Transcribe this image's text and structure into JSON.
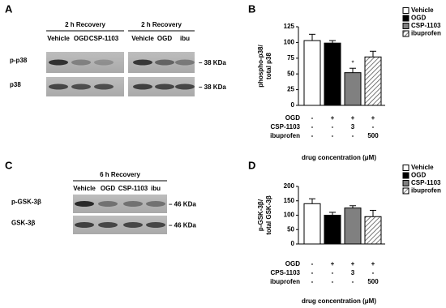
{
  "blots": [
    {
      "panel": "A",
      "groups": [
        {
          "title": "2 h Recovery",
          "lanes": [
            "Vehicle",
            "OGD",
            "CSP-1103"
          ]
        },
        {
          "title": "2 h Recovery",
          "lanes": [
            "Vehicle",
            "OGD",
            "ibu"
          ]
        }
      ],
      "rows": [
        {
          "label": "p-p38",
          "size": "– 38 KDa"
        },
        {
          "label": "p38",
          "size": "– 38 KDa"
        }
      ]
    },
    {
      "panel": "C",
      "groups": [
        {
          "title": "6 h Recovery",
          "lanes": [
            "Vehicle",
            "OGD",
            "CSP-1103",
            "ibu"
          ]
        }
      ],
      "rows": [
        {
          "label": "p-GSK-3β",
          "size": "– 46 KDa"
        },
        {
          "label": "GSK-3β",
          "size": "– 46 KDa"
        }
      ]
    }
  ],
  "chart_data": [
    {
      "type": "bar",
      "panel": "B",
      "ylabel": [
        "phospho-p38/",
        "total p38"
      ],
      "xlabel": "drug concentration (μM)",
      "categories": [
        "Vehicle",
        "OGD",
        "CSP-1103",
        "ibuprofen"
      ],
      "values": [
        103,
        99,
        52,
        77
      ],
      "errors": [
        10,
        4,
        7,
        9
      ],
      "colors": [
        "#ffffff",
        "#000000",
        "#808080",
        "#ffffff"
      ],
      "hatched": [
        false,
        false,
        false,
        true
      ],
      "significance": [
        null,
        null,
        "*",
        null
      ],
      "ylim": [
        0,
        125
      ],
      "yticks": [
        0,
        25,
        50,
        75,
        100,
        125
      ],
      "treatment_rows": [
        {
          "label": "OGD",
          "cells": [
            "-",
            "+",
            "+",
            "+"
          ]
        },
        {
          "label": "CSP-1103",
          "cells": [
            "-",
            "-",
            "3",
            "-"
          ]
        },
        {
          "label": "ibuprofen",
          "cells": [
            "-",
            "-",
            "-",
            "500"
          ]
        }
      ],
      "legend": "top-right"
    },
    {
      "type": "bar",
      "panel": "D",
      "ylabel": [
        "p-GSK-3β/",
        "total GSK-3β"
      ],
      "xlabel": "drug concentration (μM)",
      "categories": [
        "Vehicle",
        "OGD",
        "CSP-1103",
        "ibuprofen"
      ],
      "values": [
        140,
        100,
        125,
        95
      ],
      "errors": [
        17,
        10,
        8,
        22
      ],
      "colors": [
        "#ffffff",
        "#000000",
        "#808080",
        "#ffffff"
      ],
      "hatched": [
        false,
        false,
        false,
        true
      ],
      "significance": [
        null,
        null,
        null,
        null
      ],
      "ylim": [
        0,
        200
      ],
      "yticks": [
        0,
        50,
        100,
        150,
        200
      ],
      "treatment_rows": [
        {
          "label": "OGD",
          "cells": [
            "-",
            "+",
            "+",
            "+"
          ]
        },
        {
          "label": "CPS-1103",
          "cells": [
            "-",
            "-",
            "3",
            "-"
          ]
        },
        {
          "label": "ibuprofen",
          "cells": [
            "-",
            "-",
            "-",
            "500"
          ]
        }
      ],
      "legend": "top-right"
    }
  ]
}
